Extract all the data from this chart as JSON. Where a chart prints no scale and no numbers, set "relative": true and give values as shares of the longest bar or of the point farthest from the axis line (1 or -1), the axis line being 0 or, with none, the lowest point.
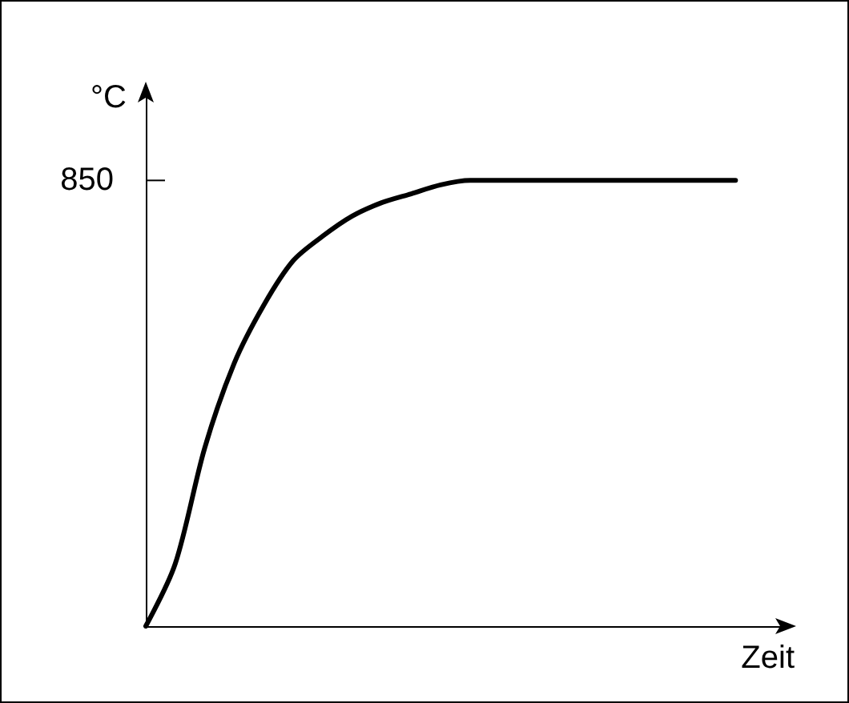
{
  "chart_data": {
    "type": "line",
    "relative": true,
    "xlabel": "Zeit",
    "ylabel": "°C",
    "categories": [
      null,
      null,
      null,
      null,
      null,
      null,
      null,
      null,
      null,
      null,
      null,
      null,
      null,
      null,
      null,
      null,
      null,
      null,
      null,
      null,
      null
    ],
    "series": [
      {
        "color": "#000000",
        "values": [
          0,
          0.14,
          0.4,
          0.59,
          0.72,
          0.82,
          0.875,
          0.92,
          0.95,
          0.97,
          0.99,
          1,
          1,
          1,
          1,
          1,
          1,
          1,
          1,
          1,
          1
        ]
      }
    ],
    "annotations": [
      "850"
    ],
    "marker": "none",
    "grid": false
  }
}
